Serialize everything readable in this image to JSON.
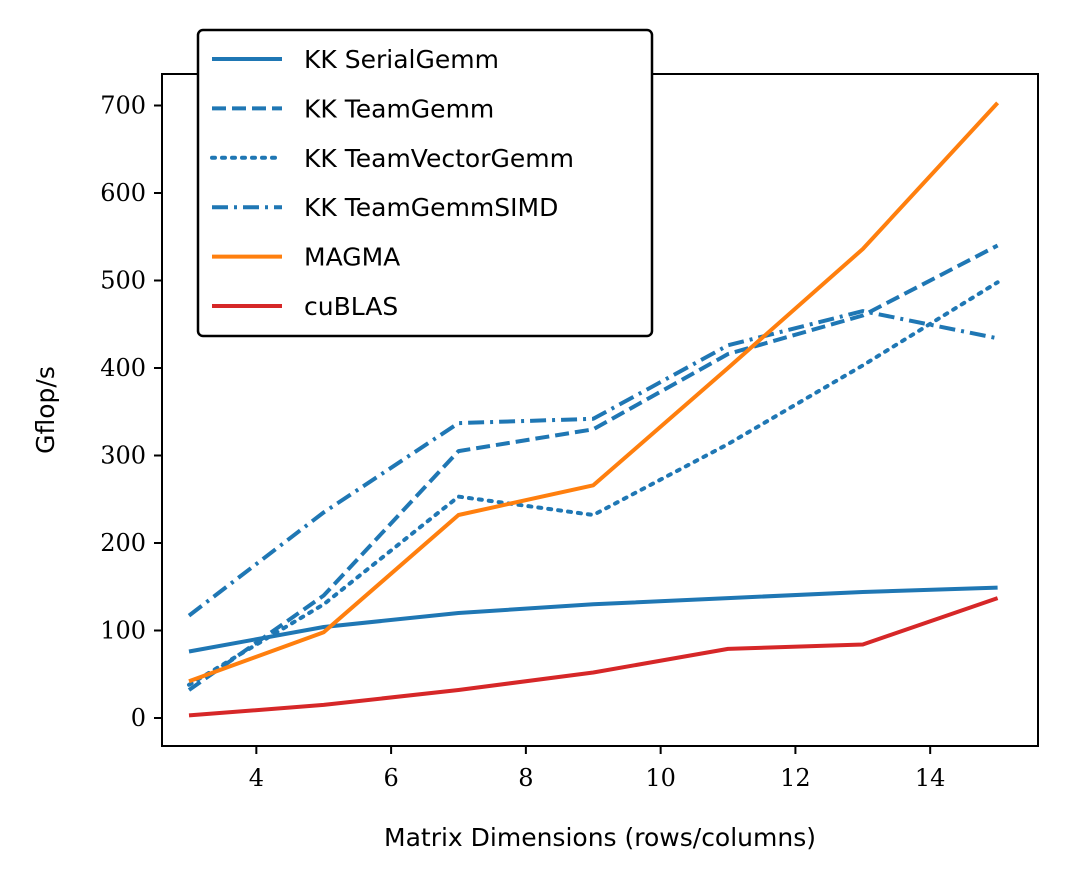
{
  "chart_data": {
    "type": "line",
    "title": "",
    "xlabel": "Matrix Dimensions (rows/columns)",
    "ylabel": "Gflop/s",
    "xlim": [
      2.6,
      15.6
    ],
    "ylim": [
      -32,
      736
    ],
    "xticks": [
      4,
      6,
      8,
      10,
      12,
      14
    ],
    "yticks": [
      0,
      100,
      200,
      300,
      400,
      500,
      600,
      700
    ],
    "grid": false,
    "legend_position": "upper-left",
    "x": [
      3,
      5,
      7,
      9,
      11,
      13,
      15
    ],
    "series": [
      {
        "name": "KK SerialGemm",
        "style": "solid",
        "color": "#1f77b4",
        "values": [
          76,
          104,
          120,
          130,
          137,
          144,
          149
        ]
      },
      {
        "name": "KK TeamGemm",
        "style": "dashed",
        "color": "#1f77b4",
        "values": [
          32,
          140,
          305,
          330,
          416,
          460,
          540
        ]
      },
      {
        "name": "KK TeamVectorGemm",
        "style": "dotted",
        "color": "#1f77b4",
        "values": [
          38,
          130,
          253,
          232,
          313,
          403,
          498
        ]
      },
      {
        "name": "KK TeamGemmSIMD",
        "style": "dashdot",
        "color": "#1f77b4",
        "values": [
          117,
          235,
          337,
          342,
          426,
          465,
          434
        ]
      },
      {
        "name": "MAGMA",
        "style": "solid",
        "color": "#ff7f0e",
        "values": [
          42,
          98,
          232,
          266,
          400,
          536,
          703
        ]
      },
      {
        "name": "cuBLAS",
        "style": "solid",
        "color": "#d62728",
        "values": [
          3,
          15,
          32,
          52,
          79,
          84,
          137
        ]
      }
    ]
  }
}
